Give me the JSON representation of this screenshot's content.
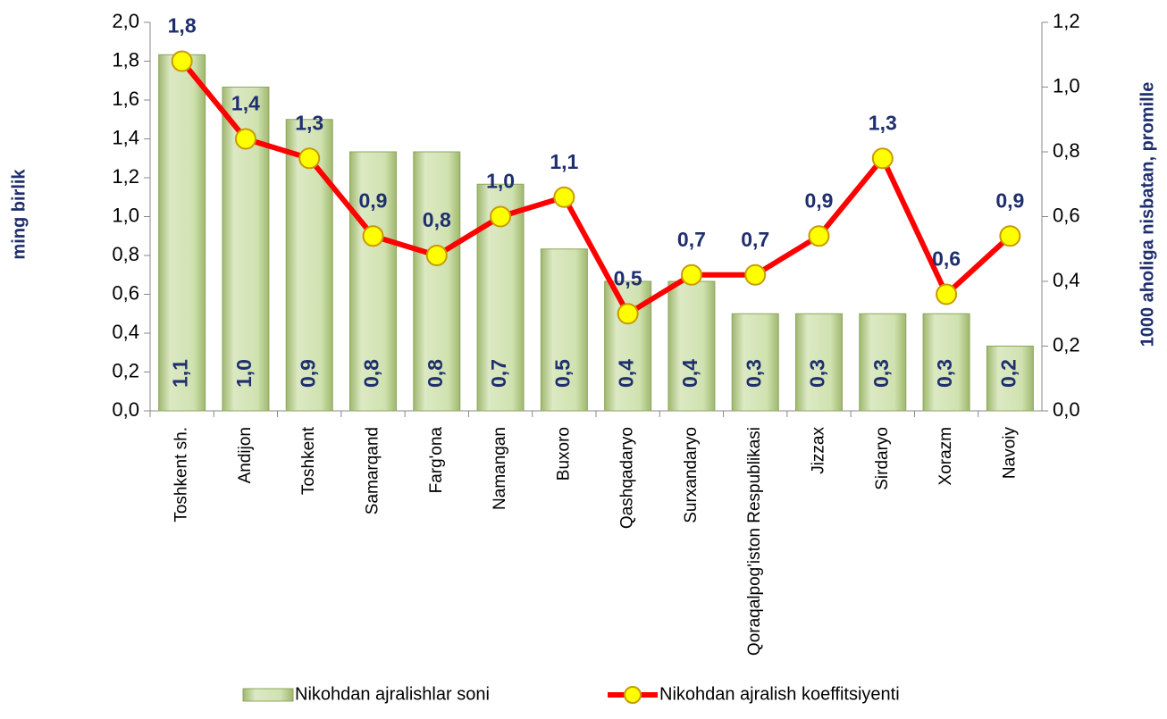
{
  "chart_data": {
    "type": "bar_line",
    "categories": [
      "Toshkent sh.",
      "Andijon",
      "Toshkent",
      "Samarqand",
      "Farg'ona",
      "Namangan",
      "Buxoro",
      "Qashqadaryo",
      "Surxandaryo",
      "Qoraqalpog'iston Respublikasi",
      "Jizzax",
      "Sirdaryo",
      "Xorazm",
      "Navoiy"
    ],
    "ylabel": "ming birlik",
    "y2label": "1000 aholiga nisbatan, promille",
    "ylim": [
      0,
      2.0
    ],
    "yticks": [
      {
        "value": 0,
        "label": "0,0"
      },
      {
        "value": 0.2,
        "label": "0,2"
      },
      {
        "value": 0.4,
        "label": "0,4"
      },
      {
        "value": 0.6,
        "label": "0,6"
      },
      {
        "value": 0.8,
        "label": "0,8"
      },
      {
        "value": 1.0,
        "label": "1,0"
      },
      {
        "value": 1.2,
        "label": "1,2"
      },
      {
        "value": 1.4,
        "label": "1,4"
      },
      {
        "value": 1.6,
        "label": "1,6"
      },
      {
        "value": 1.8,
        "label": "1,8"
      },
      {
        "value": 2.0,
        "label": "2,0"
      }
    ],
    "y2lim": [
      0,
      1.2
    ],
    "y2ticks": [
      {
        "value": 0,
        "label": "0,0"
      },
      {
        "value": 0.2,
        "label": "0,2"
      },
      {
        "value": 0.4,
        "label": "0,4"
      },
      {
        "value": 0.6,
        "label": "0,6"
      },
      {
        "value": 0.8,
        "label": "0,8"
      },
      {
        "value": 1.0,
        "label": "1,0"
      },
      {
        "value": 1.2,
        "label": "1,2"
      }
    ],
    "series": [
      {
        "name": "Nikohdan ajralishlar soni",
        "type": "bar",
        "axis": "y2",
        "color": "#c4d89e",
        "values": [
          1.1,
          1.0,
          0.9,
          0.8,
          0.8,
          0.7,
          0.5,
          0.4,
          0.4,
          0.3,
          0.3,
          0.3,
          0.3,
          0.2
        ],
        "value_labels": [
          "1,1",
          "1,0",
          "0,9",
          "0,8",
          "0,8",
          "0,7",
          "0,5",
          "0,4",
          "0,4",
          "0,3",
          "0,3",
          "0,3",
          "0,3",
          "0,2"
        ]
      },
      {
        "name": "Nikohdan ajralish koeffitsiyenti",
        "type": "line",
        "axis": "y",
        "color": "#ff0000",
        "marker_color": "#ffff00",
        "values": [
          1.8,
          1.4,
          1.3,
          0.9,
          0.8,
          1.0,
          1.1,
          0.5,
          0.7,
          0.7,
          0.9,
          1.3,
          0.6,
          0.9
        ],
        "value_labels": [
          "1,8",
          "1,4",
          "1,3",
          "0,9",
          "0,8",
          "1,0",
          "1,1",
          "0,5",
          "0,7",
          "0,7",
          "0,9",
          "1,3",
          "0,6",
          "0,9"
        ]
      }
    ]
  }
}
